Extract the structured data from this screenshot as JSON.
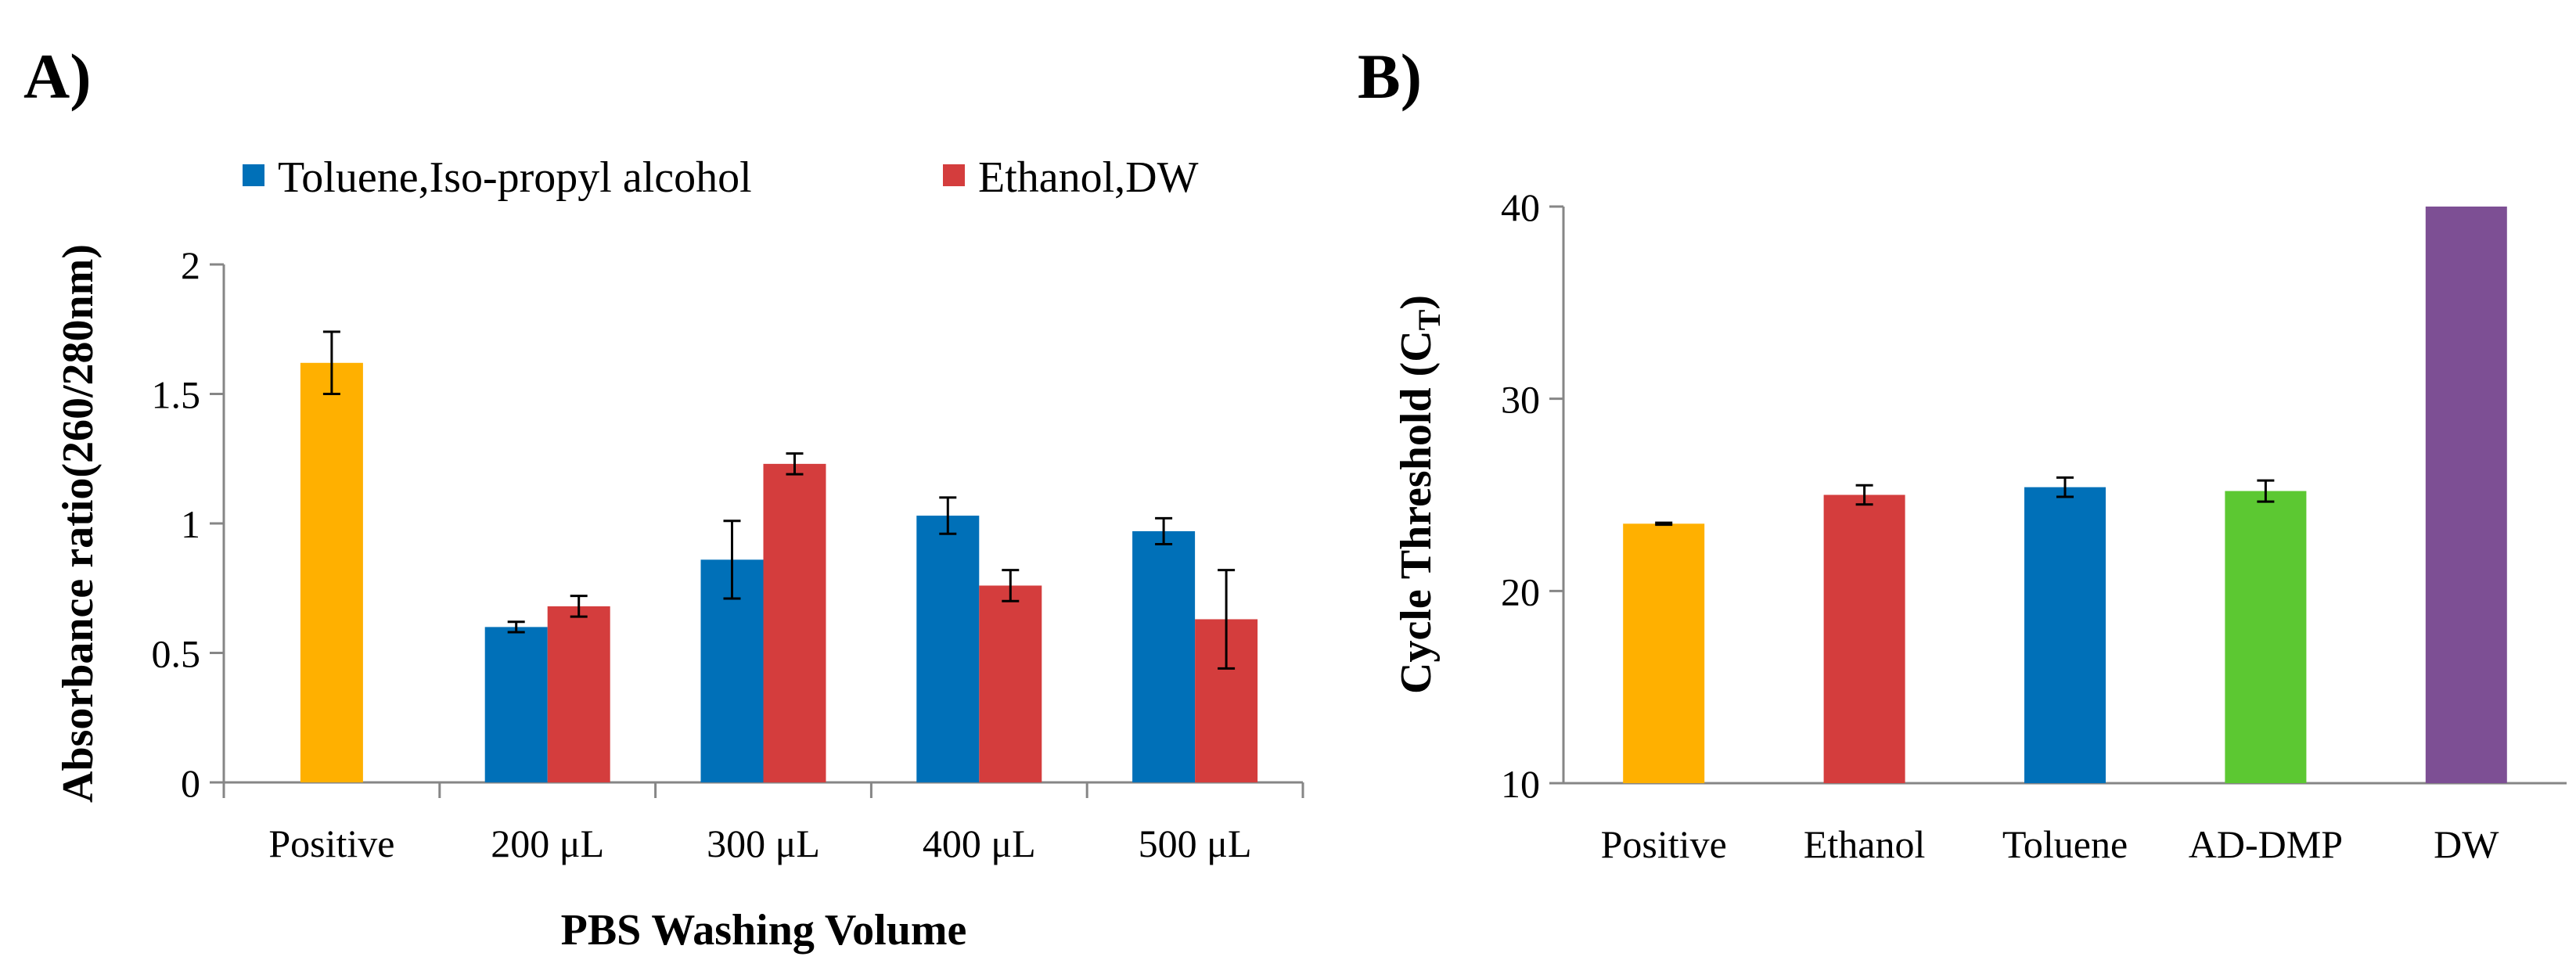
{
  "panels": {
    "a": {
      "letter": "A)"
    },
    "b": {
      "letter": "B)"
    }
  },
  "chart_data": [
    {
      "id": "A",
      "type": "bar",
      "title": "",
      "xlabel": "PBS Washing Volume",
      "ylabel": "Absorbance ratio(260/280nm)",
      "ylim": [
        0,
        2
      ],
      "yticks": [
        0,
        0.5,
        1,
        1.5,
        2
      ],
      "ytick_labels": [
        "0",
        "0.5",
        "1",
        "1.5",
        "2"
      ],
      "grid": false,
      "legend_position": "top",
      "categories": [
        "Positive",
        "200 μL",
        "300 μL",
        "400 μL",
        "500 μL"
      ],
      "series": [
        {
          "name": "Positive",
          "in_legend": false,
          "color": "#ffb000",
          "values": [
            1.62,
            null,
            null,
            null,
            null
          ],
          "errors": [
            0.12,
            null,
            null,
            null,
            null
          ]
        },
        {
          "name": "Toluene,Iso-propyl alcohol",
          "in_legend": true,
          "color": "#0070b8",
          "values": [
            null,
            0.6,
            0.86,
            1.03,
            0.97
          ],
          "errors": [
            null,
            0.02,
            0.15,
            0.07,
            0.05
          ]
        },
        {
          "name": "Ethanol,DW",
          "in_legend": true,
          "color": "#d43d3d",
          "values": [
            null,
            0.68,
            1.23,
            0.76,
            0.63
          ],
          "errors": [
            null,
            0.04,
            0.04,
            0.06,
            0.19
          ]
        }
      ]
    },
    {
      "id": "B",
      "type": "bar",
      "title": "",
      "xlabel": "",
      "ylabel_main": "Cycle Threshold (C",
      "ylabel_sub": "T",
      "ylabel_end": ")",
      "ylim": [
        10,
        40
      ],
      "yticks": [
        10,
        20,
        30,
        40
      ],
      "ytick_labels": [
        "10",
        "20",
        "30",
        "40"
      ],
      "grid": false,
      "categories": [
        "Positive",
        "Ethanol",
        "Toluene",
        "AD-DMP",
        "DW"
      ],
      "values": [
        23.5,
        25.0,
        25.4,
        25.2,
        40.0
      ],
      "errors": [
        0.05,
        0.5,
        0.5,
        0.55,
        null
      ],
      "colors": [
        "#ffb000",
        "#d43d3d",
        "#0070b8",
        "#5cc832",
        "#7d4f94"
      ]
    }
  ]
}
